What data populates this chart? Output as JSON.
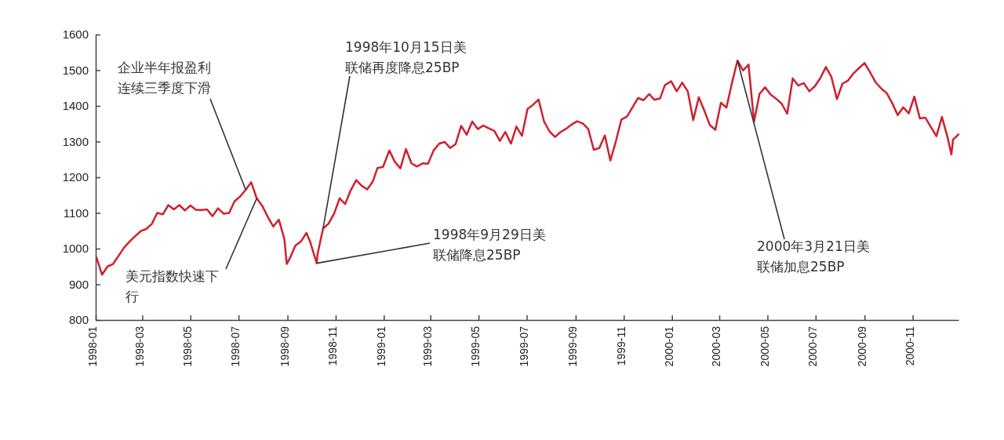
{
  "chart_data": {
    "type": "line",
    "xlim": [
      "1998-01-01",
      "2000-12-29"
    ],
    "xticks": [
      "1998-01",
      "1998-03",
      "1998-05",
      "1998-07",
      "1998-09",
      "1998-11",
      "1999-01",
      "1999-03",
      "1999-05",
      "1999-07",
      "1999-09",
      "1999-11",
      "2000-01",
      "2000-03",
      "2000-05",
      "2000-07",
      "2000-09",
      "2000-11"
    ],
    "ylim": [
      800,
      1600
    ],
    "yticks": [
      800,
      900,
      1000,
      1100,
      1200,
      1300,
      1400,
      1500,
      1600
    ],
    "grid": false,
    "marker": "none",
    "line_style": "solid",
    "series": [
      {
        "color": "#d0202e",
        "x": [
          "1998-01-02",
          "1998-01-09",
          "1998-01-16",
          "1998-01-23",
          "1998-01-30",
          "1998-02-06",
          "1998-02-13",
          "1998-02-20",
          "1998-02-27",
          "1998-03-06",
          "1998-03-13",
          "1998-03-20",
          "1998-03-27",
          "1998-04-03",
          "1998-04-10",
          "1998-04-17",
          "1998-04-24",
          "1998-05-01",
          "1998-05-08",
          "1998-05-15",
          "1998-05-22",
          "1998-05-29",
          "1998-06-05",
          "1998-06-12",
          "1998-06-19",
          "1998-06-26",
          "1998-07-03",
          "1998-07-10",
          "1998-07-17",
          "1998-07-24",
          "1998-07-31",
          "1998-08-07",
          "1998-08-14",
          "1998-08-21",
          "1998-08-28",
          "1998-08-31",
          "1998-09-04",
          "1998-09-11",
          "1998-09-18",
          "1998-09-25",
          "1998-09-30",
          "1998-10-02",
          "1998-10-08",
          "1998-10-09",
          "1998-10-16",
          "1998-10-23",
          "1998-10-30",
          "1998-11-06",
          "1998-11-13",
          "1998-11-20",
          "1998-11-27",
          "1998-12-04",
          "1998-12-11",
          "1998-12-18",
          "1998-12-24",
          "1998-12-31",
          "1999-01-08",
          "1999-01-15",
          "1999-01-22",
          "1999-01-29",
          "1999-02-05",
          "1999-02-12",
          "1999-02-19",
          "1999-02-26",
          "1999-03-05",
          "1999-03-12",
          "1999-03-19",
          "1999-03-26",
          "1999-04-02",
          "1999-04-09",
          "1999-04-16",
          "1999-04-23",
          "1999-04-30",
          "1999-05-07",
          "1999-05-14",
          "1999-05-21",
          "1999-05-28",
          "1999-06-04",
          "1999-06-11",
          "1999-06-18",
          "1999-06-25",
          "1999-07-02",
          "1999-07-09",
          "1999-07-16",
          "1999-07-23",
          "1999-07-30",
          "1999-08-06",
          "1999-08-13",
          "1999-08-20",
          "1999-08-27",
          "1999-09-03",
          "1999-09-10",
          "1999-09-17",
          "1999-09-24",
          "1999-10-01",
          "1999-10-08",
          "1999-10-15",
          "1999-10-22",
          "1999-10-29",
          "1999-11-05",
          "1999-11-12",
          "1999-11-19",
          "1999-11-26",
          "1999-12-03",
          "1999-12-10",
          "1999-12-17",
          "1999-12-23",
          "1999-12-31",
          "2000-01-07",
          "2000-01-14",
          "2000-01-21",
          "2000-01-28",
          "2000-02-04",
          "2000-02-11",
          "2000-02-18",
          "2000-02-25",
          "2000-03-03",
          "2000-03-10",
          "2000-03-17",
          "2000-03-24",
          "2000-03-31",
          "2000-04-07",
          "2000-04-14",
          "2000-04-21",
          "2000-04-28",
          "2000-05-05",
          "2000-05-12",
          "2000-05-19",
          "2000-05-26",
          "2000-06-02",
          "2000-06-09",
          "2000-06-16",
          "2000-06-23",
          "2000-06-30",
          "2000-07-07",
          "2000-07-14",
          "2000-07-21",
          "2000-07-28",
          "2000-08-04",
          "2000-08-11",
          "2000-08-18",
          "2000-08-25",
          "2000-09-01",
          "2000-09-08",
          "2000-09-15",
          "2000-09-22",
          "2000-09-29",
          "2000-10-06",
          "2000-10-13",
          "2000-10-20",
          "2000-10-27",
          "2000-11-03",
          "2000-11-10",
          "2000-11-17",
          "2000-11-24",
          "2000-12-01",
          "2000-12-08",
          "2000-12-15",
          "2000-12-20",
          "2000-12-22",
          "2000-12-29"
        ],
        "values": [
          975,
          927,
          950,
          957,
          980,
          1003,
          1020,
          1035,
          1049,
          1055,
          1069,
          1100,
          1096,
          1122,
          1110,
          1122,
          1107,
          1121,
          1109,
          1108,
          1110,
          1091,
          1113,
          1098,
          1100,
          1133,
          1146,
          1165,
          1186,
          1141,
          1120,
          1089,
          1062,
          1081,
          1027,
          957,
          973,
          1009,
          1020,
          1044,
          1017,
          1002,
          959,
          984,
          1056,
          1070,
          1098,
          1141,
          1125,
          1163,
          1192,
          1176,
          1166,
          1188,
          1226,
          1229,
          1275,
          1243,
          1225,
          1279,
          1239,
          1230,
          1239,
          1238,
          1275,
          1294,
          1299,
          1282,
          1293,
          1344,
          1319,
          1356,
          1335,
          1345,
          1337,
          1330,
          1302,
          1327,
          1294,
          1342,
          1316,
          1391,
          1403,
          1418,
          1356,
          1328,
          1313,
          1327,
          1336,
          1348,
          1357,
          1351,
          1335,
          1277,
          1282,
          1317,
          1247,
          1301,
          1362,
          1370,
          1396,
          1422,
          1416,
          1433,
          1417,
          1421,
          1458,
          1469,
          1441,
          1465,
          1441,
          1360,
          1424,
          1387,
          1346,
          1333,
          1409,
          1395,
          1464,
          1527,
          1499,
          1516,
          1356,
          1434,
          1452,
          1432,
          1420,
          1406,
          1378,
          1477,
          1457,
          1464,
          1441,
          1455,
          1478,
          1509,
          1481,
          1419,
          1462,
          1471,
          1491,
          1506,
          1520,
          1494,
          1466,
          1449,
          1436,
          1408,
          1374,
          1396,
          1379,
          1426,
          1365,
          1367,
          1341,
          1315,
          1369,
          1313,
          1264,
          1305,
          1320
        ]
      }
    ],
    "annotations": [
      {
        "text": "企业半年报盈利连续三季度下滑",
        "x": "1998-07-10",
        "y": 1165
      },
      {
        "text": "美元指数快速下行",
        "x": "1998-07-24",
        "y": 1141
      },
      {
        "text": "1998年10月15日美联储再度降息25BP",
        "x": "1998-10-16",
        "y": 1056
      },
      {
        "text": "1998年9月29日美联储降息25BP",
        "x": "1998-10-08",
        "y": 959
      },
      {
        "text": "2000年3月21日美联储加息25BP",
        "x": "2000-03-24",
        "y": 1527
      }
    ]
  }
}
